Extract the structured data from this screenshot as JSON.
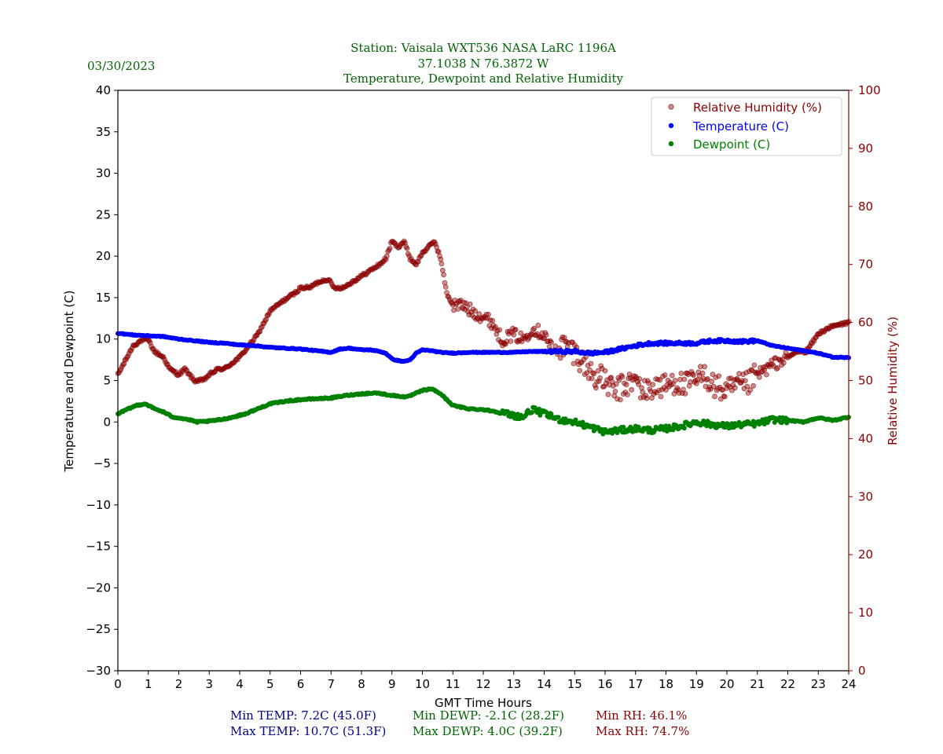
{
  "header": {
    "date": "03/30/2023",
    "title_line1": "Station:  Vaisala WXT536  NASA LaRC 1196A",
    "title_line2": "37.1038 N 76.3872 W",
    "title_line3": "Temperature, Dewpoint and Relative Humidity"
  },
  "stats": {
    "min_temp": "Min TEMP: 7.2C (45.0F)",
    "max_temp": "Max TEMP: 10.7C (51.3F)",
    "min_dewp": "Min DEWP: -2.1C (28.2F)",
    "max_dewp": "Max DEWP: 4.0C (39.2F)",
    "min_rh": "Min RH: 46.1%",
    "max_rh": "Max RH: 74.7%"
  },
  "colors": {
    "temperature": "#0000ff",
    "dewpoint": "#008000",
    "rh": "#8b0000",
    "header_text": "#006400",
    "temp_stats": "#00008b"
  },
  "chart_data": {
    "type": "scatter",
    "xlabel": "GMT Time Hours",
    "ylabel_left": "Temperature and Dewpoint (C)",
    "ylabel_right": "Relative Humidity (%)",
    "xlim": [
      0,
      24
    ],
    "ylim_left": [
      -30,
      40
    ],
    "ylim_right": [
      0,
      100
    ],
    "x_ticks": [
      0,
      1,
      2,
      3,
      4,
      5,
      6,
      7,
      8,
      9,
      10,
      11,
      12,
      13,
      14,
      15,
      16,
      17,
      18,
      19,
      20,
      21,
      22,
      23,
      24
    ],
    "y_ticks_left": [
      -30,
      -25,
      -20,
      -15,
      -10,
      -5,
      0,
      5,
      10,
      15,
      20,
      25,
      30,
      35,
      40
    ],
    "y_ticks_right": [
      0,
      10,
      20,
      30,
      40,
      50,
      60,
      70,
      80,
      90,
      100
    ],
    "legend": {
      "location": "top-right",
      "entries": [
        "Relative Humidity (%)",
        "Temperature (C)",
        "Dewpoint (C)"
      ]
    },
    "series": [
      {
        "name": "Relative Humidity (%)",
        "axis": "right",
        "x": [
          0,
          0.3,
          0.5,
          0.8,
          1.0,
          1.2,
          1.5,
          1.7,
          2.0,
          2.2,
          2.5,
          2.8,
          3.0,
          3.3,
          3.5,
          4.0,
          4.3,
          4.6,
          5.0,
          5.5,
          5.8,
          6.0,
          6.3,
          6.6,
          6.9,
          7.1,
          7.4,
          7.7,
          8.0,
          8.3,
          8.6,
          8.8,
          9.0,
          9.2,
          9.4,
          9.6,
          9.8,
          10.0,
          10.2,
          10.4,
          10.6,
          10.8,
          11.0,
          11.3,
          11.6,
          12.0,
          12.3,
          12.6,
          13.0,
          13.3,
          13.6,
          14.0,
          14.3,
          14.6,
          15.0,
          15.3,
          15.6,
          16.0,
          16.3,
          16.6,
          17.0,
          17.3,
          17.6,
          18.0,
          18.3,
          18.6,
          19.0,
          19.3,
          19.6,
          20.0,
          20.3,
          20.6,
          21.0,
          21.3,
          21.6,
          22.0,
          22.3,
          22.6,
          23.0,
          23.3,
          23.6,
          24.0
        ],
        "values": [
          51,
          54,
          56,
          57,
          57,
          55,
          54,
          52,
          51,
          52,
          50,
          50,
          51,
          52,
          52,
          54,
          56,
          58,
          62,
          64,
          65,
          66,
          66,
          67,
          67.5,
          66,
          66,
          67,
          68,
          69,
          70,
          71,
          74,
          73,
          74,
          71,
          70,
          72,
          73,
          74,
          71,
          65,
          63,
          63,
          62,
          61,
          60,
          57,
          58,
          57,
          59,
          58,
          55,
          56,
          55,
          53,
          51,
          50,
          48,
          49,
          50,
          48,
          49,
          49,
          50,
          49,
          50,
          51,
          49,
          48,
          49,
          49,
          51,
          52,
          53,
          54,
          55,
          55,
          58,
          59,
          59.5,
          60
        ]
      },
      {
        "name": "Temperature (C)",
        "axis": "left",
        "x": [
          0,
          0.5,
          1.0,
          1.5,
          2.0,
          2.5,
          3.0,
          3.5,
          4.0,
          4.5,
          5.0,
          5.5,
          6.0,
          6.5,
          7.0,
          7.3,
          7.6,
          8.0,
          8.3,
          8.6,
          8.8,
          9.0,
          9.2,
          9.4,
          9.6,
          9.8,
          10.0,
          10.3,
          10.6,
          11.0,
          11.5,
          12.0,
          12.5,
          13.0,
          13.5,
          14.0,
          14.5,
          15.0,
          15.5,
          16.0,
          16.5,
          17.0,
          17.5,
          18.0,
          18.5,
          19.0,
          19.5,
          20.0,
          20.5,
          21.0,
          21.5,
          22.0,
          22.5,
          23.0,
          23.5,
          24.0
        ],
        "values": [
          10.7,
          10.5,
          10.4,
          10.3,
          10.0,
          9.8,
          9.6,
          9.5,
          9.3,
          9.2,
          9.0,
          8.9,
          8.8,
          8.6,
          8.4,
          8.8,
          8.9,
          8.7,
          8.7,
          8.5,
          8.3,
          7.6,
          7.4,
          7.3,
          7.5,
          8.3,
          8.7,
          8.6,
          8.4,
          8.3,
          8.4,
          8.4,
          8.4,
          8.4,
          8.5,
          8.5,
          8.5,
          8.5,
          8.3,
          8.4,
          8.8,
          9.2,
          9.5,
          9.5,
          9.5,
          9.5,
          9.8,
          9.8,
          9.7,
          9.8,
          9.2,
          8.9,
          8.6,
          8.3,
          7.8,
          7.8
        ]
      },
      {
        "name": "Dewpoint (C)",
        "axis": "left",
        "x": [
          0,
          0.3,
          0.6,
          0.9,
          1.2,
          1.5,
          1.8,
          2.0,
          2.3,
          2.6,
          3.0,
          3.4,
          3.8,
          4.2,
          4.6,
          5.0,
          5.5,
          6.0,
          6.5,
          7.0,
          7.5,
          8.0,
          8.5,
          9.0,
          9.5,
          10.0,
          10.3,
          10.6,
          11.0,
          11.5,
          12.0,
          12.5,
          13.0,
          13.3,
          13.6,
          14.0,
          14.5,
          15.0,
          15.5,
          16.0,
          16.5,
          17.0,
          17.5,
          18.0,
          18.5,
          19.0,
          19.5,
          20.0,
          20.5,
          21.0,
          21.5,
          22.0,
          22.5,
          23.0,
          23.5,
          24.0
        ],
        "values": [
          1.0,
          1.5,
          2.0,
          2.2,
          1.6,
          1.2,
          0.6,
          0.5,
          0.3,
          0.0,
          0.1,
          0.3,
          0.6,
          1.0,
          1.6,
          2.2,
          2.5,
          2.7,
          2.8,
          2.9,
          3.2,
          3.4,
          3.5,
          3.2,
          3.0,
          3.8,
          4.0,
          3.4,
          2.0,
          1.6,
          1.5,
          1.2,
          0.8,
          0.6,
          1.5,
          1.0,
          0.3,
          0.0,
          -0.6,
          -1.2,
          -1.0,
          -0.8,
          -1.0,
          -0.8,
          -0.5,
          0.0,
          -0.3,
          -0.5,
          -0.3,
          -0.2,
          0.3,
          0.2,
          0.0,
          0.5,
          0.2,
          0.6
        ]
      }
    ]
  }
}
